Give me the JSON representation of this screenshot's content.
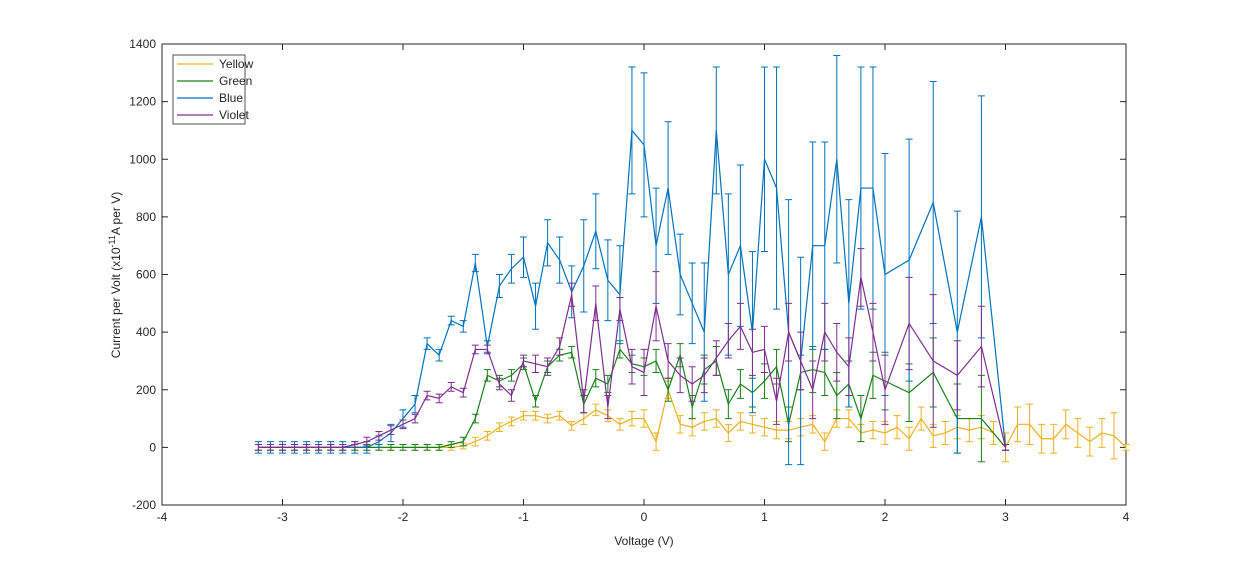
{
  "chart_data": {
    "type": "line",
    "xlabel": "Voltage (V)",
    "ylabel": [
      "Current per Volt (x10",
      "-11",
      "A per V)"
    ],
    "xlim": [
      -4,
      4
    ],
    "ylim": [
      -200,
      1400
    ],
    "xticks": [
      -4,
      -3,
      -2,
      -1,
      0,
      1,
      2,
      3,
      4
    ],
    "yticks": [
      -200,
      0,
      200,
      400,
      600,
      800,
      1000,
      1200,
      1400
    ],
    "legend": "upper left",
    "box": true,
    "series": [
      {
        "name": "Yellow",
        "color": "#EDB120",
        "x": [
          -3.2,
          -3.1,
          -3,
          -2.9,
          -2.8,
          -2.7,
          -2.6,
          -2.5,
          -2.4,
          -2.3,
          -2.2,
          -2.1,
          -2,
          -1.9,
          -1.8,
          -1.7,
          -1.6,
          -1.5,
          -1.4,
          -1.3,
          -1.2,
          -1.1,
          -1,
          -0.9,
          -0.8,
          -0.7,
          -0.6,
          -0.5,
          -0.4,
          -0.3,
          -0.2,
          -0.1,
          0,
          0.1,
          0.2,
          0.3,
          0.4,
          0.5,
          0.6,
          0.7,
          0.8,
          0.9,
          1,
          1.1,
          1.2,
          1.3,
          1.4,
          1.5,
          1.6,
          1.7,
          1.8,
          1.9,
          2,
          2.1,
          2.2,
          2.3,
          2.4,
          2.5,
          2.6,
          2.7,
          2.8,
          2.9,
          3,
          3.1,
          3.2,
          3.3,
          3.4,
          3.5,
          3.6,
          3.7,
          3.8,
          3.9,
          4
        ],
        "values": [
          0,
          0,
          0,
          0,
          0,
          0,
          0,
          0,
          0,
          0,
          0,
          0,
          0,
          0,
          0,
          0,
          0,
          5,
          20,
          40,
          70,
          90,
          110,
          110,
          100,
          110,
          75,
          100,
          130,
          110,
          80,
          100,
          100,
          20,
          200,
          80,
          70,
          90,
          100,
          50,
          90,
          80,
          70,
          60,
          60,
          70,
          80,
          20,
          100,
          100,
          50,
          60,
          50,
          70,
          30,
          100,
          40,
          50,
          70,
          60,
          70,
          50,
          0,
          80,
          80,
          30,
          30,
          80,
          50,
          20,
          50,
          40,
          0
        ],
        "errors": [
          10,
          10,
          10,
          10,
          10,
          10,
          10,
          10,
          10,
          10,
          10,
          10,
          10,
          10,
          10,
          10,
          10,
          10,
          15,
          15,
          15,
          15,
          15,
          15,
          15,
          15,
          15,
          20,
          20,
          20,
          20,
          25,
          30,
          30,
          30,
          30,
          30,
          30,
          30,
          30,
          30,
          30,
          30,
          30,
          30,
          30,
          30,
          30,
          30,
          30,
          30,
          30,
          40,
          40,
          40,
          40,
          40,
          40,
          40,
          40,
          40,
          40,
          50,
          60,
          70,
          50,
          50,
          50,
          50,
          50,
          50,
          80,
          10
        ]
      },
      {
        "name": "Green",
        "color": "#1A801A",
        "x": [
          -3.2,
          -3.1,
          -3,
          -2.9,
          -2.8,
          -2.7,
          -2.6,
          -2.5,
          -2.4,
          -2.3,
          -2.2,
          -2.1,
          -2,
          -1.9,
          -1.8,
          -1.7,
          -1.6,
          -1.5,
          -1.4,
          -1.3,
          -1.2,
          -1.1,
          -1,
          -0.9,
          -0.8,
          -0.7,
          -0.6,
          -0.5,
          -0.4,
          -0.3,
          -0.2,
          -0.1,
          0,
          0.1,
          0.2,
          0.3,
          0.4,
          0.5,
          0.6,
          0.7,
          0.8,
          0.9,
          1,
          1.1,
          1.2,
          1.3,
          1.4,
          1.5,
          1.6,
          1.7,
          1.8,
          1.9,
          2,
          2.2,
          2.4,
          2.6,
          2.8,
          3
        ],
        "values": [
          0,
          0,
          0,
          0,
          0,
          0,
          0,
          0,
          0,
          0,
          0,
          0,
          0,
          0,
          0,
          0,
          10,
          20,
          100,
          250,
          230,
          250,
          290,
          160,
          280,
          320,
          330,
          150,
          240,
          220,
          340,
          290,
          280,
          300,
          200,
          320,
          140,
          270,
          300,
          150,
          220,
          190,
          230,
          280,
          80,
          260,
          270,
          260,
          180,
          220,
          100,
          250,
          230,
          190,
          260,
          100,
          100,
          0
        ],
        "errors": [
          10,
          10,
          10,
          10,
          10,
          10,
          10,
          10,
          10,
          10,
          10,
          10,
          10,
          10,
          10,
          10,
          10,
          15,
          15,
          20,
          20,
          20,
          20,
          20,
          20,
          20,
          20,
          30,
          30,
          30,
          30,
          30,
          30,
          40,
          40,
          40,
          40,
          50,
          50,
          50,
          50,
          50,
          60,
          60,
          60,
          60,
          80,
          80,
          80,
          80,
          80,
          80,
          100,
          100,
          120,
          120,
          150,
          10
        ]
      },
      {
        "name": "Blue",
        "color": "#0072BD",
        "x": [
          -3.2,
          -3.1,
          -3,
          -2.9,
          -2.8,
          -2.7,
          -2.6,
          -2.5,
          -2.4,
          -2.3,
          -2.2,
          -2.1,
          -2,
          -1.9,
          -1.8,
          -1.7,
          -1.6,
          -1.5,
          -1.4,
          -1.3,
          -1.2,
          -1.1,
          -1,
          -0.9,
          -0.8,
          -0.7,
          -0.6,
          -0.5,
          -0.4,
          -0.3,
          -0.2,
          -0.1,
          0,
          0.1,
          0.2,
          0.3,
          0.4,
          0.5,
          0.6,
          0.7,
          0.8,
          0.9,
          1,
          1.1,
          1.2,
          1.3,
          1.4,
          1.5,
          1.6,
          1.7,
          1.8,
          1.9,
          2,
          2.2,
          2.4,
          2.6,
          2.8,
          3
        ],
        "values": [
          0,
          0,
          0,
          0,
          0,
          0,
          0,
          0,
          0,
          0,
          20,
          50,
          100,
          150,
          360,
          320,
          440,
          420,
          640,
          350,
          560,
          620,
          660,
          490,
          710,
          650,
          540,
          630,
          750,
          580,
          530,
          1100,
          1050,
          700,
          900,
          600,
          500,
          400,
          1100,
          600,
          700,
          400,
          1000,
          900,
          400,
          300,
          700,
          700,
          1000,
          500,
          900,
          900,
          600,
          650,
          850,
          400,
          800,
          0
        ],
        "errors": [
          20,
          20,
          20,
          20,
          20,
          20,
          20,
          20,
          20,
          20,
          20,
          30,
          30,
          30,
          20,
          20,
          15,
          20,
          30,
          20,
          40,
          50,
          70,
          80,
          80,
          80,
          90,
          160,
          130,
          140,
          170,
          220,
          250,
          200,
          230,
          140,
          140,
          240,
          220,
          280,
          280,
          280,
          320,
          420,
          460,
          360,
          360,
          360,
          360,
          360,
          420,
          420,
          420,
          420,
          420,
          420,
          420,
          10
        ]
      },
      {
        "name": "Violet",
        "color": "#7E2F8E",
        "x": [
          -3.2,
          -3.1,
          -3,
          -2.9,
          -2.8,
          -2.7,
          -2.6,
          -2.5,
          -2.4,
          -2.3,
          -2.2,
          -2.1,
          -2,
          -1.9,
          -1.8,
          -1.7,
          -1.6,
          -1.5,
          -1.4,
          -1.3,
          -1.2,
          -1.1,
          -1,
          -0.9,
          -0.8,
          -0.7,
          -0.6,
          -0.5,
          -0.4,
          -0.3,
          -0.2,
          -0.1,
          0,
          0.1,
          0.2,
          0.3,
          0.4,
          0.5,
          0.6,
          0.7,
          0.8,
          0.9,
          1,
          1.1,
          1.2,
          1.3,
          1.4,
          1.5,
          1.6,
          1.7,
          1.8,
          1.9,
          2,
          2.2,
          2.4,
          2.6,
          2.8,
          3
        ],
        "values": [
          0,
          0,
          0,
          0,
          0,
          0,
          0,
          0,
          10,
          20,
          40,
          60,
          80,
          100,
          180,
          170,
          210,
          190,
          340,
          340,
          220,
          180,
          300,
          290,
          280,
          350,
          530,
          160,
          500,
          140,
          480,
          280,
          260,
          490,
          300,
          250,
          220,
          250,
          310,
          370,
          420,
          330,
          340,
          160,
          400,
          300,
          200,
          400,
          330,
          280,
          590,
          400,
          200,
          430,
          300,
          250,
          350,
          0
        ],
        "errors": [
          10,
          10,
          10,
          10,
          10,
          10,
          10,
          10,
          10,
          15,
          15,
          15,
          15,
          15,
          15,
          15,
          15,
          15,
          15,
          15,
          20,
          20,
          20,
          30,
          30,
          30,
          40,
          40,
          60,
          40,
          40,
          60,
          80,
          120,
          60,
          60,
          60,
          60,
          60,
          60,
          80,
          80,
          80,
          80,
          100,
          100,
          100,
          100,
          100,
          100,
          100,
          100,
          120,
          160,
          230,
          120,
          140,
          10
        ]
      }
    ]
  }
}
